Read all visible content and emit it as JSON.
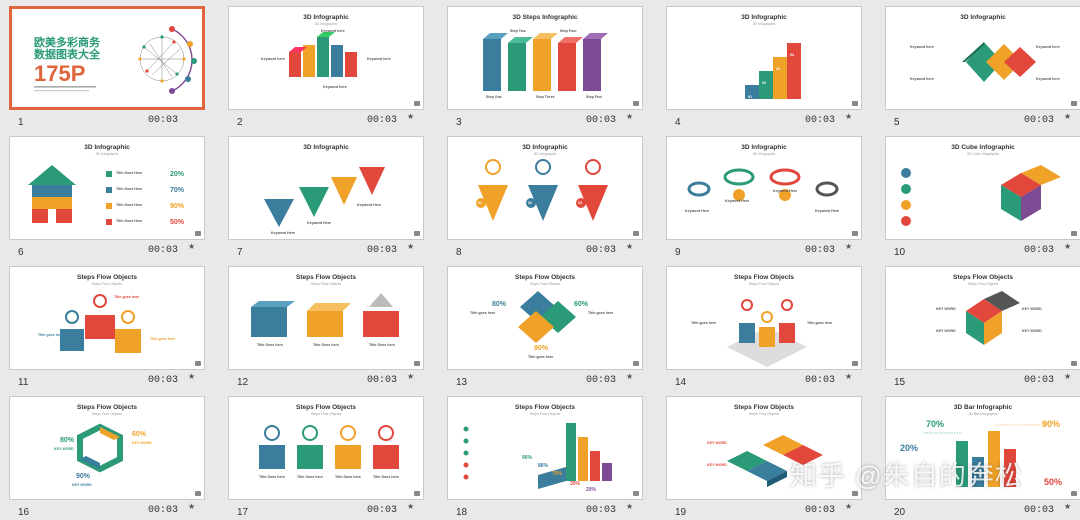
{
  "slides": [
    {
      "number": "1",
      "duration": "00:03",
      "title": "",
      "subtitle": "",
      "cn_title_1": "欧美多彩商务",
      "cn_title_2": "数据图表大全",
      "cn_big": "175P"
    },
    {
      "number": "2",
      "duration": "00:03",
      "title": "3D Infographic",
      "subtitle": "3D Infographic",
      "labels": [
        "Keyword here",
        "Keyword here",
        "Keyword here",
        "Keyword here"
      ]
    },
    {
      "number": "3",
      "duration": "00:03",
      "title": "3D Steps Infographic",
      "subtitle": "",
      "labels": [
        "Step Two",
        "Step Four",
        "Step One",
        "Step Three",
        "Step Five"
      ]
    },
    {
      "number": "4",
      "duration": "00:03",
      "title": "3D Infographic",
      "subtitle": "3D Infographic",
      "labels": [
        "01",
        "02",
        "03",
        "04"
      ]
    },
    {
      "number": "5",
      "duration": "00:03",
      "title": "3D Infographic",
      "subtitle": "",
      "labels": [
        "Keyword here",
        "Keyword here",
        "Keyword here",
        "Keyword here"
      ]
    },
    {
      "number": "6",
      "duration": "00:03",
      "title": "3D Infographic",
      "subtitle": "3D Infographic",
      "labels": [
        "Title Goes Here",
        "Title Goes Here",
        "Title Goes Here",
        "Title Goes Here"
      ],
      "percents": [
        "20%",
        "70%",
        "90%",
        "50%"
      ]
    },
    {
      "number": "7",
      "duration": "00:03",
      "title": "3D Infographic",
      "subtitle": "",
      "labels": [
        "Keyword Here",
        "Keyword Here",
        "Keyword Here"
      ]
    },
    {
      "number": "8",
      "duration": "00:03",
      "title": "3D Infographic",
      "subtitle": "3D Infographic",
      "labels": [
        "01",
        "02",
        "03"
      ]
    },
    {
      "number": "9",
      "duration": "00:03",
      "title": "3D Infographic",
      "subtitle": "3D Infographic",
      "labels": [
        "Keyword Here",
        "Keyword Here",
        "Keyword Here",
        "Keyword Here"
      ]
    },
    {
      "number": "10",
      "duration": "00:03",
      "title": "3D Cube Infographic",
      "subtitle": "3D Cube Infographic",
      "labels": []
    },
    {
      "number": "11",
      "duration": "00:03",
      "title": "Steps Flow Objects",
      "subtitle": "Steps Flow Objects",
      "labels": [
        "Title goes here",
        "Title goes here",
        "Title goes here"
      ]
    },
    {
      "number": "12",
      "duration": "00:03",
      "title": "Steps Flow Objects",
      "subtitle": "Steps Flow Objects",
      "labels": [
        "Title Goes here",
        "Title Goes here",
        "Title Goes here"
      ]
    },
    {
      "number": "13",
      "duration": "00:03",
      "title": "Steps Flow Objects",
      "subtitle": "Steps Flow Objects",
      "percents": [
        "80%",
        "60%",
        "90%"
      ],
      "labels": [
        "Title goes here",
        "Title goes here",
        "Title goes here"
      ]
    },
    {
      "number": "14",
      "duration": "00:03",
      "title": "Steps Flow Objects",
      "subtitle": "Steps Flow Objects",
      "labels": [
        "Title goes here",
        "Title goes here"
      ]
    },
    {
      "number": "15",
      "duration": "00:03",
      "title": "Steps Flow Objects",
      "subtitle": "Steps Flow Objects",
      "labels": [
        "KEY WORD",
        "KEY WORD",
        "KEY WORD",
        "KEY WORD"
      ]
    },
    {
      "number": "16",
      "duration": "00:03",
      "title": "Steps Flow Objects",
      "subtitle": "Steps Flow Objects",
      "percents": [
        "80%",
        "60%",
        "90%"
      ],
      "labels": [
        "KEY WORD",
        "KEY WORD",
        "KEY WORD"
      ]
    },
    {
      "number": "17",
      "duration": "00:03",
      "title": "Steps Flow Objects",
      "subtitle": "Steps Flow Objects",
      "labels": [
        "Title Goes here",
        "Title Goes here",
        "Title Goes here",
        "Title Goes here"
      ]
    },
    {
      "number": "18",
      "duration": "00:03",
      "title": "Steps Flow Objects",
      "subtitle": "Steps Flow Objects",
      "percents": [
        "96%",
        "86%",
        "75%",
        "30%",
        "20%"
      ],
      "labels": []
    },
    {
      "number": "19",
      "duration": "00:03",
      "title": "Steps Flow Objects",
      "subtitle": "Steps Flow Objects",
      "labels": [
        "KEY WORD",
        "KEY WORD"
      ]
    },
    {
      "number": "20",
      "duration": "00:03",
      "title": "3D Bar Infographic",
      "subtitle": "3D Bar Infographic",
      "percents": [
        "70%",
        "90%",
        "20%",
        "50%"
      ],
      "labels": []
    }
  ],
  "watermark": "知乎 @朱自的奔松",
  "colors": {
    "selected_border": "#e0643c",
    "teal": "#2a9a79",
    "orange": "#f0a228",
    "red": "#e2473c",
    "blue": "#3b7d9c",
    "purple": "#7e4a94"
  }
}
